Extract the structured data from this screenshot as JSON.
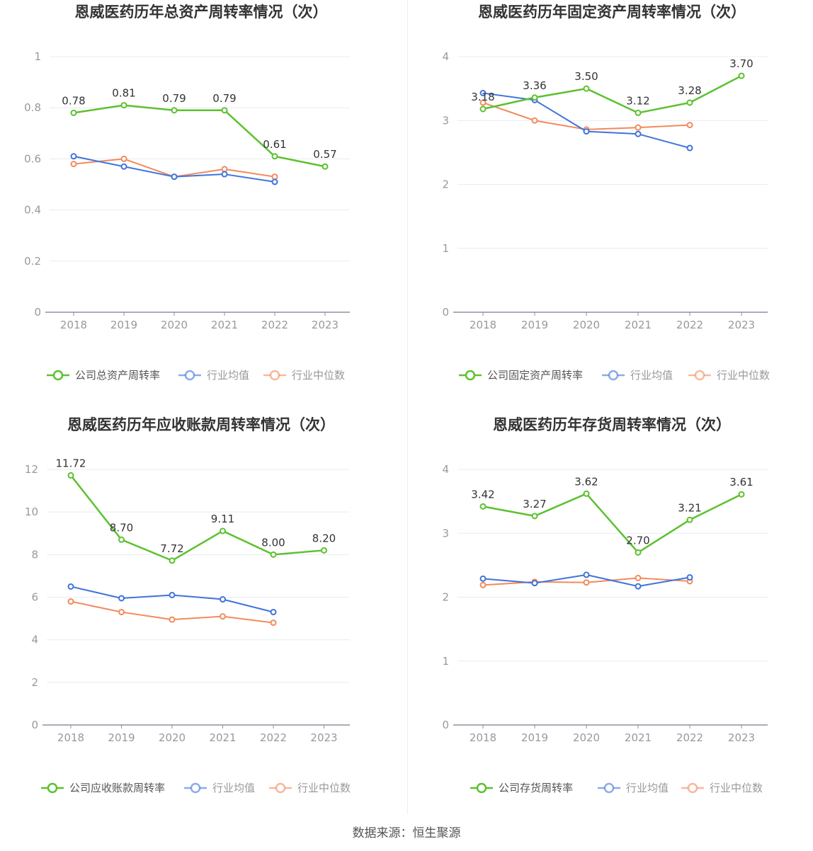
{
  "source": "数据来源：恒生聚源",
  "colors": {
    "company": "#5cc12f",
    "average": "#3f74db",
    "median": "#f28a5c",
    "grid": "#e9ecf3",
    "axis": "#8d90a0"
  },
  "chart_data": [
    {
      "type": "line",
      "title": "恩威医药历年总资产周转率情况（次）",
      "categories": [
        "2018",
        "2019",
        "2020",
        "2021",
        "2022",
        "2023"
      ],
      "ylim": [
        0,
        1
      ],
      "yticks": [
        "0",
        "0.2",
        "0.4",
        "0.6",
        "0.8",
        "1"
      ],
      "yticks_values": [
        0,
        0.2,
        0.4,
        0.6,
        0.8,
        1
      ],
      "series": [
        {
          "name": "公司总资产周转率",
          "key": "company",
          "values": [
            0.78,
            0.81,
            0.79,
            0.79,
            0.61,
            0.57
          ],
          "labels": [
            "0.78",
            "0.81",
            "0.79",
            "0.79",
            "0.61",
            "0.57"
          ]
        },
        {
          "name": "行业均值",
          "key": "average",
          "values": [
            0.61,
            0.57,
            0.53,
            0.54,
            0.51,
            null
          ]
        },
        {
          "name": "行业中位数",
          "key": "median",
          "values": [
            0.58,
            0.6,
            0.53,
            0.56,
            0.53,
            null
          ]
        }
      ]
    },
    {
      "type": "line",
      "title": "恩威医药历年固定资产周转率情况（次）",
      "categories": [
        "2018",
        "2019",
        "2020",
        "2021",
        "2022",
        "2023"
      ],
      "ylim": [
        0,
        4
      ],
      "yticks": [
        "0",
        "1",
        "2",
        "3",
        "4"
      ],
      "yticks_values": [
        0,
        1,
        2,
        3,
        4
      ],
      "series": [
        {
          "name": "公司固定资产周转率",
          "key": "company",
          "values": [
            3.18,
            3.36,
            3.5,
            3.12,
            3.28,
            3.7
          ],
          "labels": [
            "3.18",
            "3.36",
            "3.50",
            "3.12",
            "3.28",
            "3.70"
          ]
        },
        {
          "name": "行业均值",
          "key": "average",
          "values": [
            3.43,
            3.32,
            2.83,
            2.79,
            2.57,
            null
          ]
        },
        {
          "name": "行业中位数",
          "key": "median",
          "values": [
            3.28,
            3.0,
            2.86,
            2.89,
            2.93,
            null
          ]
        }
      ]
    },
    {
      "type": "line",
      "title": "恩威医药历年应收账款周转率情况（次）",
      "categories": [
        "2018",
        "2019",
        "2020",
        "2021",
        "2022",
        "2023"
      ],
      "ylim": [
        0,
        12
      ],
      "yticks": [
        "0",
        "2",
        "4",
        "6",
        "8",
        "10",
        "12"
      ],
      "yticks_values": [
        0,
        2,
        4,
        6,
        8,
        10,
        12
      ],
      "series": [
        {
          "name": "公司应收账款周转率",
          "key": "company",
          "values": [
            11.72,
            8.7,
            7.72,
            9.11,
            8.0,
            8.2
          ],
          "labels": [
            "11.72",
            "8.70",
            "7.72",
            "9.11",
            "8.00",
            "8.20"
          ]
        },
        {
          "name": "行业均值",
          "key": "average",
          "values": [
            6.5,
            5.95,
            6.1,
            5.9,
            5.3,
            null
          ]
        },
        {
          "name": "行业中位数",
          "key": "median",
          "values": [
            5.8,
            5.3,
            4.95,
            5.1,
            4.8,
            null
          ]
        }
      ]
    },
    {
      "type": "line",
      "title": "恩威医药历年存货周转率情况（次）",
      "categories": [
        "2018",
        "2019",
        "2020",
        "2021",
        "2022",
        "2023"
      ],
      "ylim": [
        0,
        4
      ],
      "yticks": [
        "0",
        "1",
        "2",
        "3",
        "4"
      ],
      "yticks_values": [
        0,
        1,
        2,
        3,
        4
      ],
      "series": [
        {
          "name": "公司存货周转率",
          "key": "company",
          "values": [
            3.42,
            3.27,
            3.62,
            2.7,
            3.21,
            3.61
          ],
          "labels": [
            "3.42",
            "3.27",
            "3.62",
            "2.70",
            "3.21",
            "3.61"
          ]
        },
        {
          "name": "行业均值",
          "key": "average",
          "values": [
            2.29,
            2.22,
            2.35,
            2.17,
            2.31,
            null
          ]
        },
        {
          "name": "行业中位数",
          "key": "median",
          "values": [
            2.19,
            2.24,
            2.23,
            2.3,
            2.25,
            null
          ]
        }
      ]
    }
  ]
}
